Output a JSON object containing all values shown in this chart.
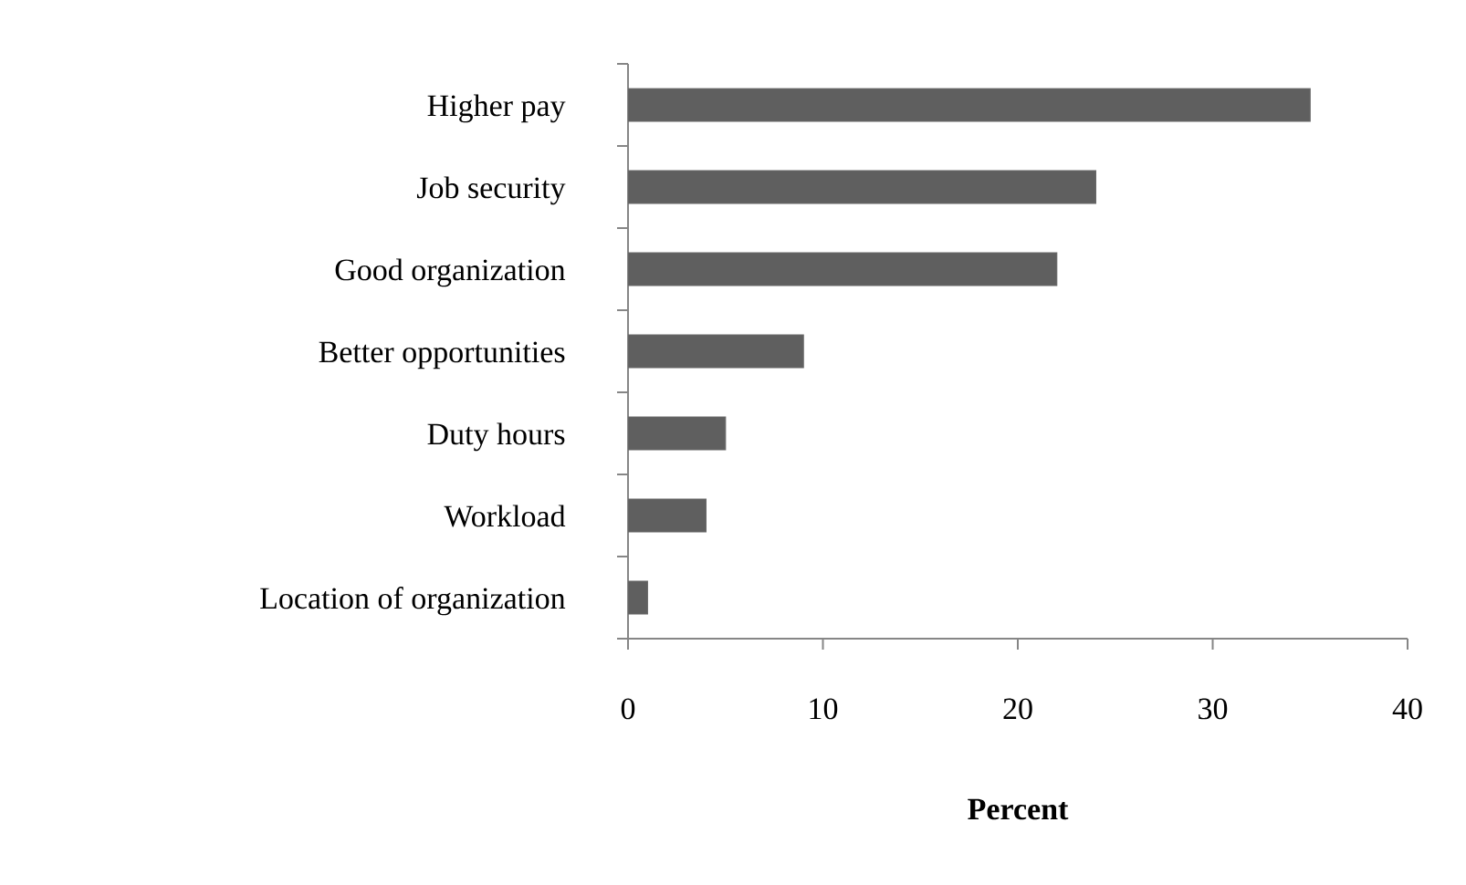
{
  "chart_data": {
    "type": "bar",
    "orientation": "horizontal",
    "xlabel": "Percent",
    "categories": [
      "Higher pay",
      "Job security",
      "Good organization",
      "Better opportunities",
      "Duty hours",
      "Workload",
      "Location of organization"
    ],
    "values": [
      35,
      24,
      22,
      9,
      5,
      4,
      1
    ],
    "color": "#5f5f5f",
    "xlim": [
      0,
      40
    ],
    "xticks": [
      0,
      10,
      20,
      30,
      40
    ]
  }
}
